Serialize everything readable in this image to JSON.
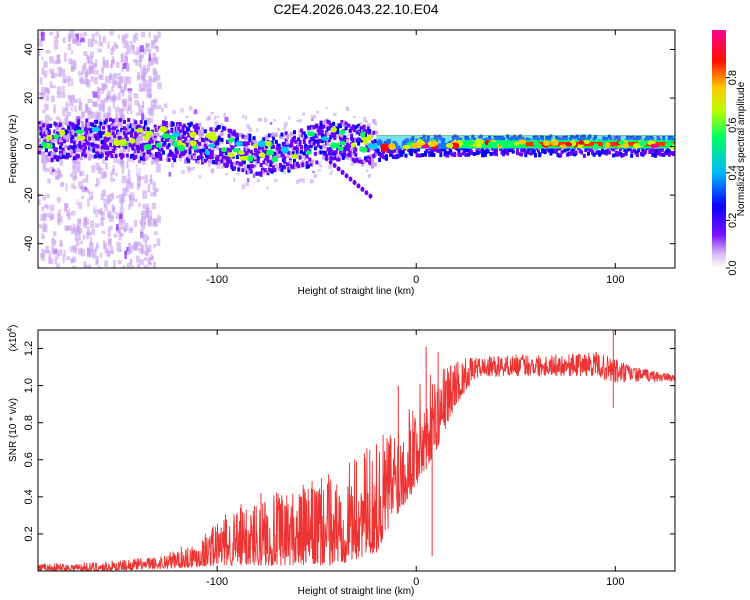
{
  "chart_data": [
    {
      "type": "heatmap",
      "title": "C2E4.2026.043.22.10.E04",
      "xlabel": "Height of straight line (km)",
      "ylabel": "Frequency (Hz)",
      "xlim": [
        -190,
        130
      ],
      "ylim": [
        -50,
        48
      ],
      "xticks": [
        -100,
        0,
        100
      ],
      "yticks": [
        -40,
        -20,
        0,
        20,
        40
      ],
      "colorbar": {
        "label": "Normalized spectral amplitude",
        "range": [
          0.0,
          1.0
        ],
        "ticks": [
          0.0,
          0.2,
          0.4,
          0.6,
          0.8
        ],
        "tick_labels": [
          "0.0",
          "0.2",
          "0.4",
          "0.6",
          "0.8"
        ],
        "colormap": [
          "#ffffff",
          "#c8a0f0",
          "#6a00ff",
          "#0000ff",
          "#00c8ff",
          "#00ff64",
          "#c8ff00",
          "#ffc800",
          "#ff0000",
          "#ff0080"
        ]
      },
      "band_center_hz": [
        {
          "x": -190,
          "f": 3
        },
        {
          "x": -150,
          "f": 4
        },
        {
          "x": -120,
          "f": 3
        },
        {
          "x": -100,
          "f": 1
        },
        {
          "x": -80,
          "f": -3
        },
        {
          "x": -60,
          "f": -1
        },
        {
          "x": -45,
          "f": 4
        },
        {
          "x": -30,
          "f": 2
        },
        {
          "x": -20,
          "f": -1
        },
        {
          "x": 0,
          "f": 1
        },
        {
          "x": 20,
          "f": 1
        },
        {
          "x": 60,
          "f": 1
        },
        {
          "x": 100,
          "f": 1
        },
        {
          "x": 130,
          "f": 1
        }
      ]
    },
    {
      "type": "line",
      "title": "",
      "xlabel": "Height of straight line (km)",
      "ylabel": "SNR (10 * v/v)",
      "scale_note": "(x10",
      "scale_exp": "4",
      "scale_close": ")",
      "xlim": [
        -190,
        130
      ],
      "ylim": [
        0,
        1.3
      ],
      "xticks": [
        -100,
        0,
        100
      ],
      "yticks": [
        0.2,
        0.4,
        0.6,
        0.8,
        1.0,
        1.2
      ],
      "ytick_labels": [
        "0.2",
        "0.4",
        "0.6",
        "0.8",
        "1.0",
        "1.2"
      ],
      "series": [
        {
          "name": "SNR",
          "color": "#ee3333",
          "envelope": [
            {
              "x": -190,
              "lo": 0.0,
              "hi": 0.04
            },
            {
              "x": -160,
              "lo": 0.0,
              "hi": 0.05
            },
            {
              "x": -130,
              "lo": 0.01,
              "hi": 0.08
            },
            {
              "x": -110,
              "lo": 0.02,
              "hi": 0.17
            },
            {
              "x": -100,
              "lo": 0.03,
              "hi": 0.28
            },
            {
              "x": -80,
              "lo": 0.03,
              "hi": 0.4
            },
            {
              "x": -60,
              "lo": 0.03,
              "hi": 0.45
            },
            {
              "x": -40,
              "lo": 0.03,
              "hi": 0.55
            },
            {
              "x": -20,
              "lo": 0.1,
              "hi": 0.7
            },
            {
              "x": -10,
              "lo": 0.3,
              "hi": 0.85
            },
            {
              "x": 0,
              "lo": 0.45,
              "hi": 1.0
            },
            {
              "x": 10,
              "lo": 0.65,
              "hi": 1.1
            },
            {
              "x": 20,
              "lo": 0.9,
              "hi": 1.15
            },
            {
              "x": 30,
              "lo": 1.04,
              "hi": 1.15
            },
            {
              "x": 50,
              "lo": 1.05,
              "hi": 1.17
            },
            {
              "x": 70,
              "lo": 1.05,
              "hi": 1.17
            },
            {
              "x": 90,
              "lo": 1.05,
              "hi": 1.18
            },
            {
              "x": 100,
              "lo": 1.0,
              "hi": 1.15
            },
            {
              "x": 110,
              "lo": 1.02,
              "hi": 1.1
            },
            {
              "x": 130,
              "lo": 1.02,
              "hi": 1.06
            }
          ],
          "spikes": [
            {
              "x": -102,
              "y": 0.24
            },
            {
              "x": -88,
              "y": 0.36
            },
            {
              "x": -78,
              "y": 0.42
            },
            {
              "x": -68,
              "y": 0.33
            },
            {
              "x": -48,
              "y": 0.38
            },
            {
              "x": -30,
              "y": 0.59
            },
            {
              "x": -20,
              "y": 0.68
            },
            {
              "x": -9,
              "y": 1.0
            },
            {
              "x": 5,
              "y": 1.21
            },
            {
              "x": 8,
              "y": 0.08
            },
            {
              "x": 11,
              "y": 1.18
            },
            {
              "x": 99,
              "y": 1.3
            },
            {
              "x": 99,
              "y": 0.88
            }
          ]
        }
      ]
    }
  ]
}
